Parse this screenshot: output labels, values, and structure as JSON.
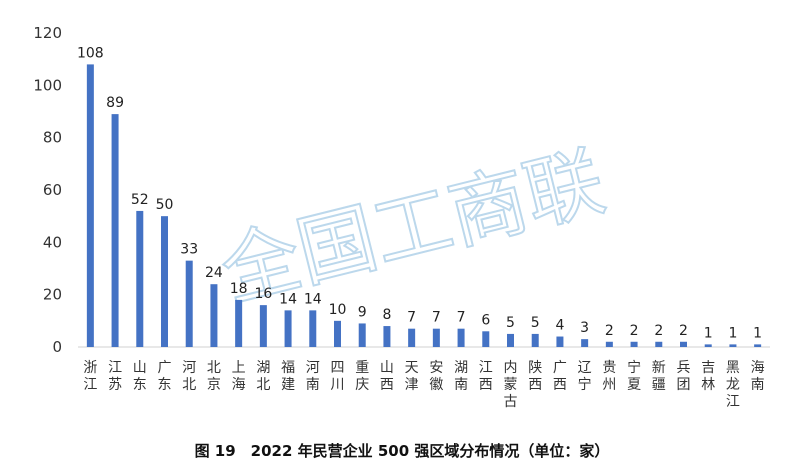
{
  "caption": "图 19　2022 年民营企业 500 强区域分布情况（单位：家）",
  "watermark": "全国工商联",
  "colors": {
    "bar": "#4472c4",
    "axis": "#d0d0d0",
    "watermark": "#bcd8ec"
  },
  "chart_data": {
    "type": "bar",
    "title": "",
    "xlabel": "",
    "ylabel": "",
    "ylim": [
      0,
      120
    ],
    "yticks": [
      0,
      20,
      40,
      60,
      80,
      100,
      120
    ],
    "grid": false,
    "legend": "none",
    "categories": [
      "浙江",
      "江苏",
      "山东",
      "广东",
      "河北",
      "北京",
      "上海",
      "湖北",
      "福建",
      "河南",
      "四川",
      "重庆",
      "山西",
      "天津",
      "安徽",
      "湖南",
      "江西",
      "内蒙古",
      "陕西",
      "广西",
      "辽宁",
      "贵州",
      "宁夏",
      "新疆",
      "兵团",
      "吉林",
      "黑龙江",
      "海南"
    ],
    "values": [
      108,
      89,
      52,
      50,
      33,
      24,
      18,
      16,
      14,
      14,
      10,
      9,
      8,
      7,
      7,
      7,
      6,
      5,
      5,
      4,
      3,
      2,
      2,
      2,
      2,
      1,
      1,
      1
    ]
  }
}
